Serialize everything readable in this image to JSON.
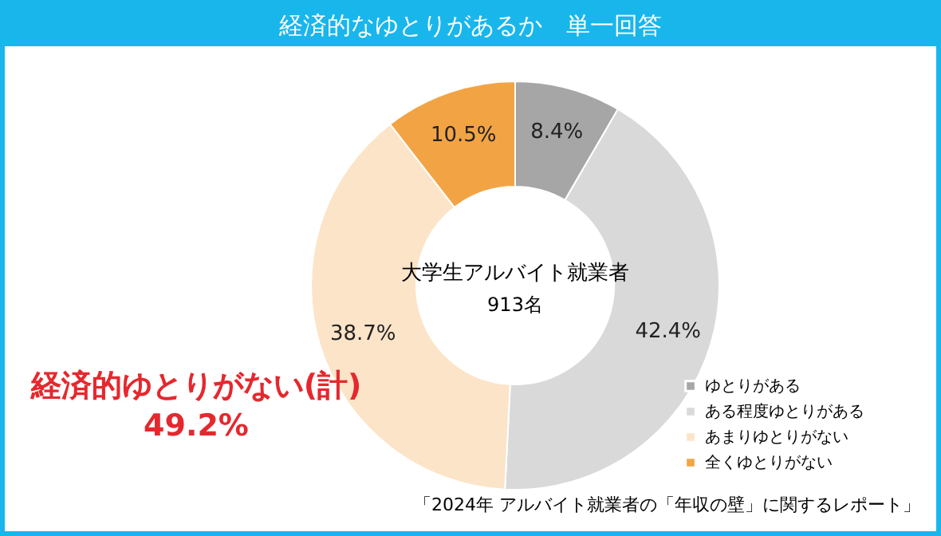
{
  "chart_data": {
    "type": "donut",
    "title": "経済的なゆとりがあるか　単一回答",
    "categories": [
      "ゆとりがある",
      "ある程度ゆとりがある",
      "あまりゆとりがない",
      "全くゆとりがない"
    ],
    "values": [
      8.4,
      42.4,
      38.7,
      10.5
    ],
    "colors": [
      "#a6a6a6",
      "#d9d9d9",
      "#fce4c8",
      "#f2a444"
    ],
    "value_labels": [
      "8.4%",
      "42.4%",
      "38.7%",
      "10.5%"
    ],
    "legend": "bottom right",
    "annotations": [
      "大学生アルバイト就業者",
      "913名",
      "経済的ゆとりがない(計)",
      "49.2%",
      "「2024年 アルバイト就業者の「年収の壁」に関するレポート」"
    ]
  }
}
